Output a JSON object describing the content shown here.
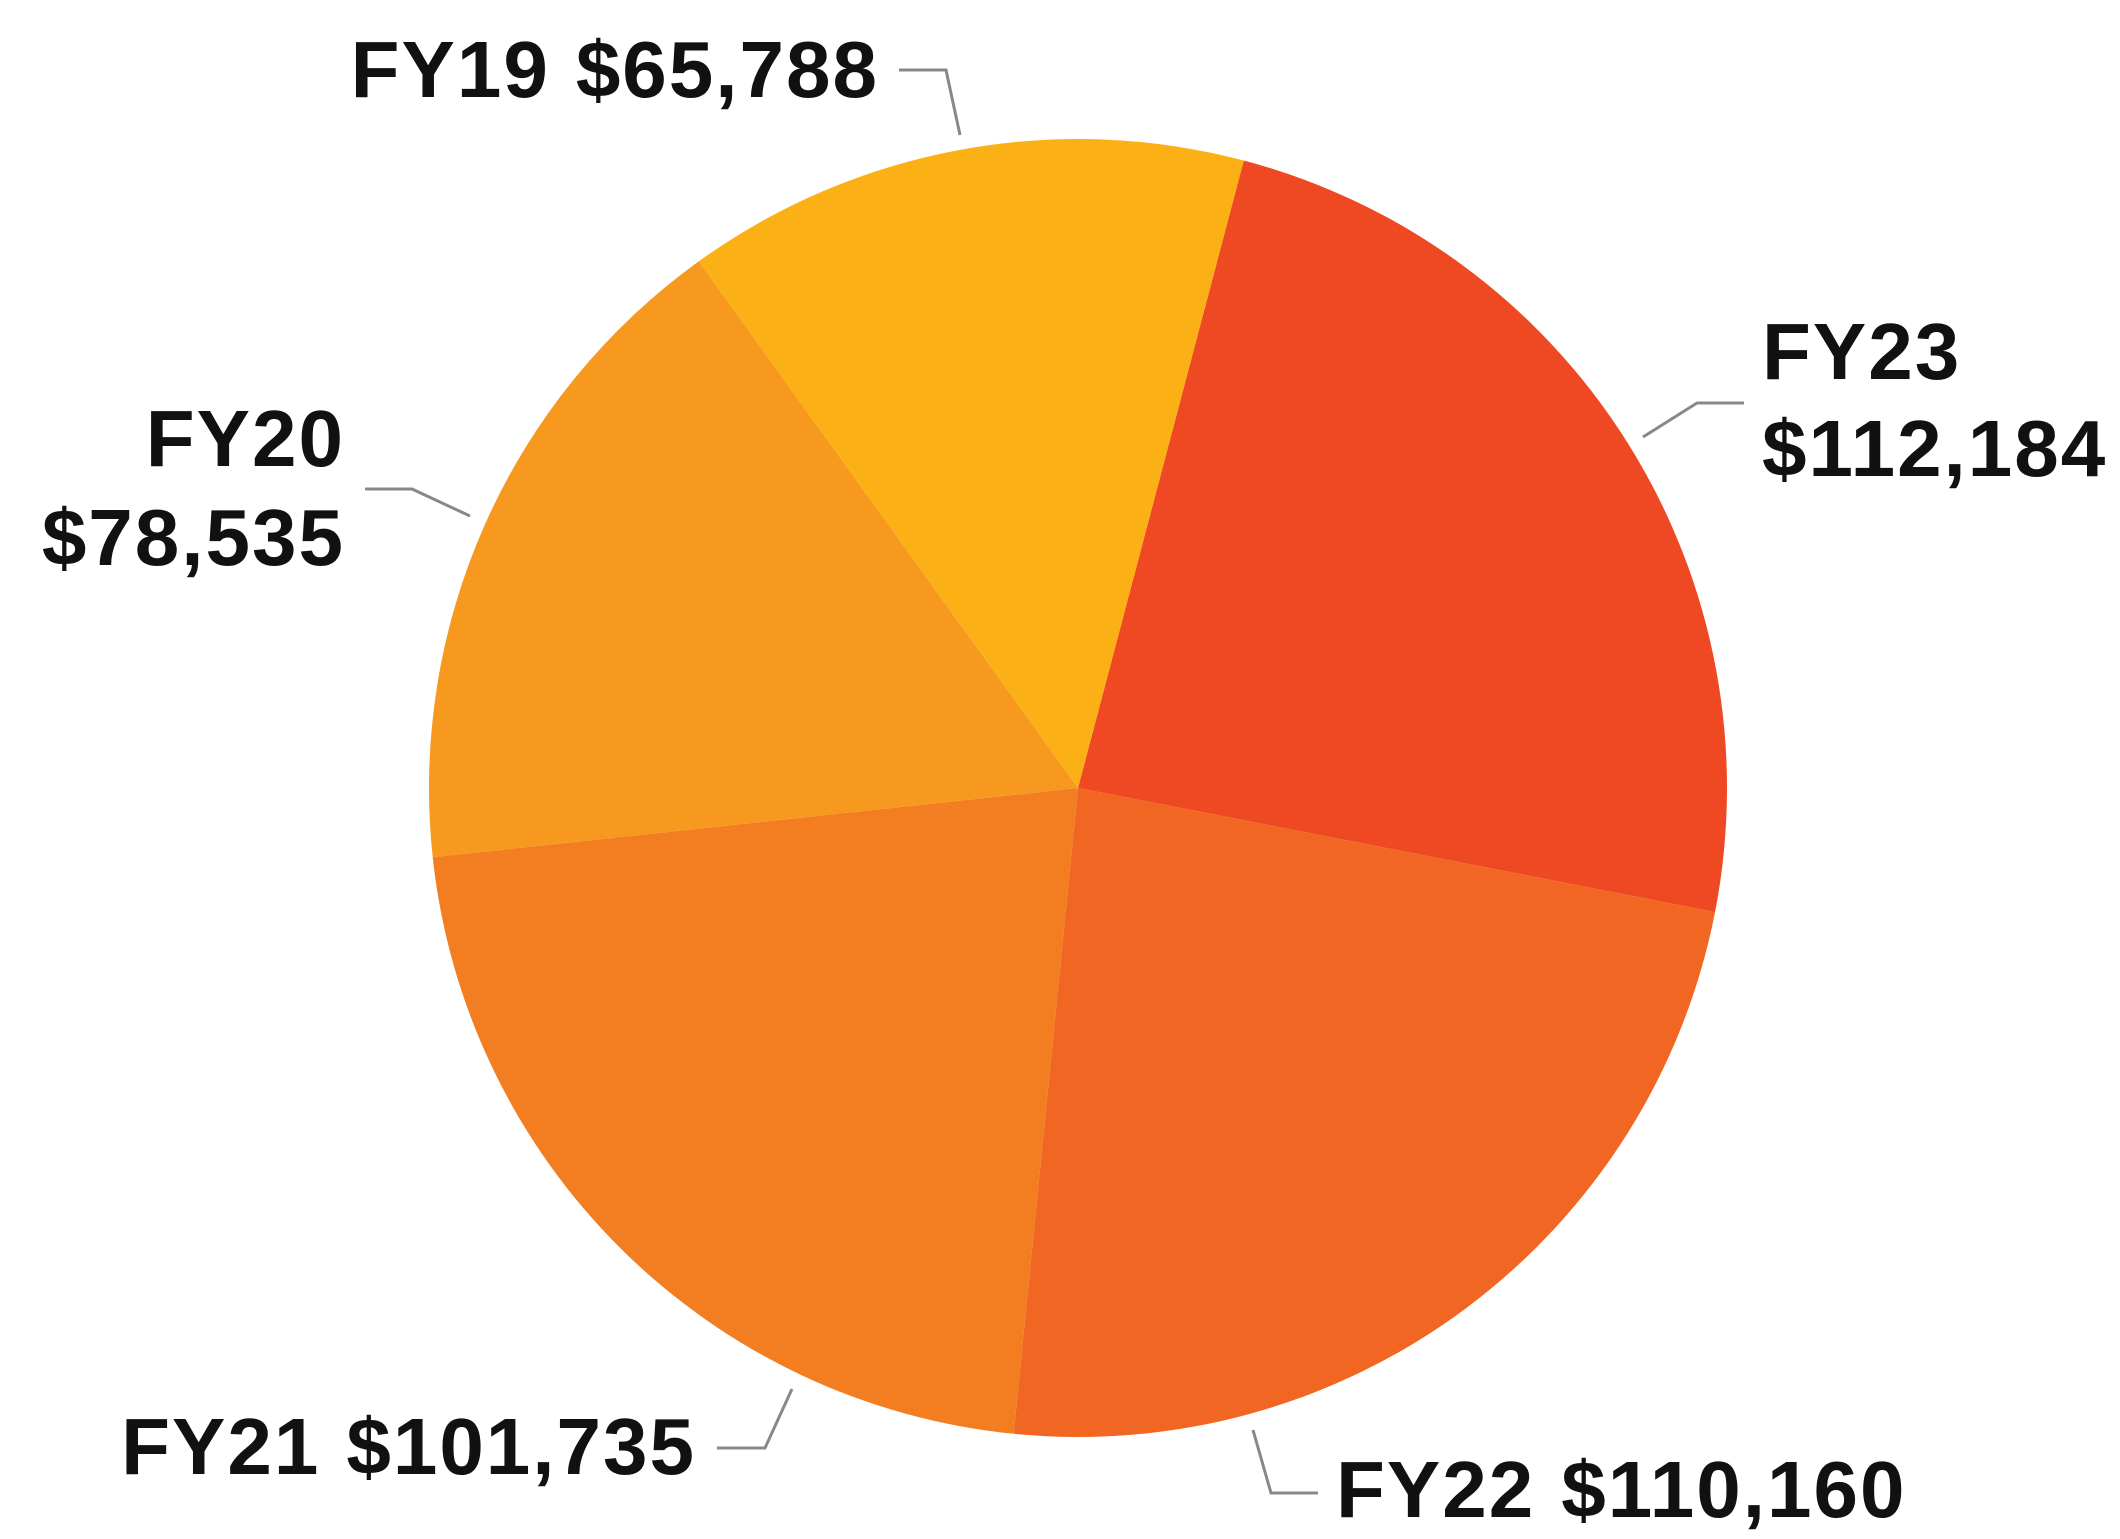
{
  "chart_data": {
    "type": "pie",
    "categories": [
      "FY19",
      "FY20",
      "FY21",
      "FY22",
      "FY23"
    ],
    "values": [
      65788,
      78535,
      101735,
      110160,
      112184
    ],
    "value_labels": [
      "$65,788",
      "$78,535",
      "$101,735",
      "$110,160",
      "$112,184"
    ],
    "colors": [
      "#fbb116",
      "#f7981f",
      "#f37e21",
      "#f16622",
      "#ef4923"
    ]
  }
}
